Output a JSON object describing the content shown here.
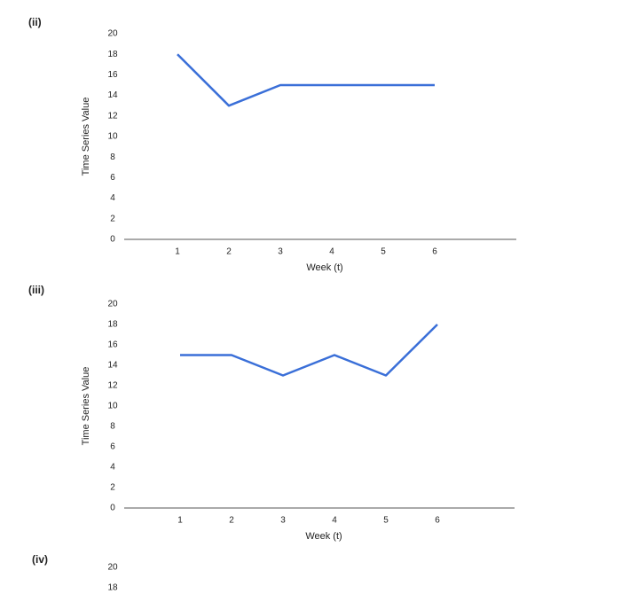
{
  "chart_data": [
    {
      "type": "line",
      "title": "(ii)",
      "y_label": "Time Series Value",
      "x_label": "Week (t)",
      "categories": [
        "1",
        "2",
        "3",
        "4",
        "5",
        "6"
      ],
      "series": [
        {
          "color": "#3a6fd8",
          "values": [
            18,
            13,
            15,
            15,
            15,
            15
          ]
        }
      ],
      "ylim": [
        0,
        20
      ],
      "yticks": [
        0,
        2,
        4,
        6,
        8,
        10,
        12,
        14,
        16,
        18,
        20
      ]
    },
    {
      "type": "line",
      "title": "(iii)",
      "y_label": "Time Series Value",
      "x_label": "Week (t)",
      "categories": [
        "1",
        "2",
        "3",
        "4",
        "5",
        "6"
      ],
      "series": [
        {
          "color": "#3a6fd8",
          "values": [
            15,
            15,
            13,
            15,
            13,
            18
          ]
        }
      ],
      "ylim": [
        0,
        20
      ],
      "yticks": [
        0,
        2,
        4,
        6,
        8,
        10,
        12,
        14,
        16,
        18,
        20
      ]
    },
    {
      "type": "line",
      "title": "(iv)",
      "ylim": [
        0,
        20
      ],
      "yticks": [
        20,
        18
      ]
    }
  ]
}
